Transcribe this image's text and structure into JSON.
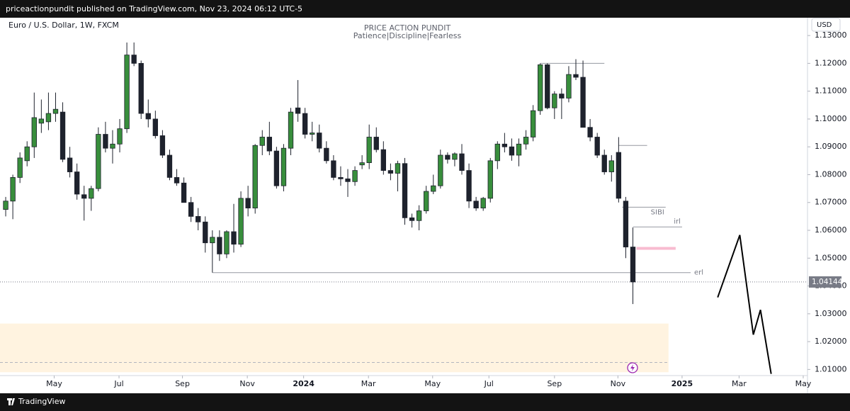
{
  "header": {
    "published": "priceactionpundit published on TradingView.com, Nov 23, 2024 06:12 UTC-5"
  },
  "footer": {
    "brand": "TradingView"
  },
  "chart_data": {
    "type": "candlestick",
    "symbol": "Euro / U.S. Dollar, 1W, FXCM",
    "title": "PRICE ACTION PUNDIT",
    "subtitle": "Patience|Discipline|Fearless",
    "currency": "USD",
    "up_color": "#388e3c",
    "down_color": "#1e222d",
    "open": [
      1.0675,
      1.0705,
      1.079,
      1.085,
      1.09,
      1.0985,
      1.099,
      1.102,
      1.1025,
      1.086,
      1.081,
      1.0728,
      1.0715,
      1.075,
      1.0945,
      1.0895,
      1.091,
      1.0965,
      1.123,
      1.12,
      1.102,
      1.1,
      1.094,
      1.087,
      1.079,
      1.077,
      1.07,
      1.065,
      1.063,
      1.0555,
      1.0575,
      1.0515,
      1.0595,
      1.055,
      1.0715,
      1.068,
      1.0905,
      1.0935,
      1.0885,
      1.076,
      1.0895,
      1.104,
      1.102,
      1.0945,
      1.095,
      1.0895,
      1.085,
      1.079,
      1.0785,
      1.0775,
      1.0835,
      1.0843,
      1.0935,
      1.089,
      1.0815,
      1.0805,
      1.084,
      1.0645,
      1.0635,
      1.067,
      1.074,
      1.076,
      1.087,
      1.0855,
      1.0875,
      1.0815,
      1.0705,
      1.068,
      1.0715,
      1.085,
      1.091,
      1.09,
      1.087,
      1.091,
      1.0935,
      1.103,
      1.1195,
      1.104,
      1.109,
      1.1075,
      1.116,
      1.115,
      1.097,
      1.0935,
      1.087,
      1.081,
      1.088,
      1.0705,
      1.054
    ],
    "high": [
      1.072,
      1.08,
      1.088,
      1.092,
      1.1095,
      1.107,
      1.1095,
      1.1095,
      1.106,
      1.09,
      1.084,
      1.076,
      1.076,
      1.097,
      1.099,
      1.096,
      1.1,
      1.1275,
      1.1275,
      1.121,
      1.107,
      1.103,
      1.096,
      1.089,
      1.082,
      1.079,
      1.072,
      1.068,
      1.065,
      1.06,
      1.06,
      1.06,
      1.0695,
      1.074,
      1.076,
      1.091,
      1.096,
      1.099,
      1.09,
      1.091,
      1.104,
      1.114,
      1.104,
      1.099,
      1.098,
      1.092,
      1.087,
      1.083,
      1.082,
      1.083,
      1.087,
      1.098,
      1.097,
      1.092,
      1.084,
      1.085,
      1.086,
      1.066,
      1.069,
      1.076,
      1.08,
      1.089,
      1.088,
      1.088,
      1.091,
      1.084,
      1.072,
      1.072,
      1.086,
      1.092,
      1.095,
      1.093,
      1.093,
      1.096,
      1.105,
      1.12,
      1.12,
      1.11,
      1.111,
      1.119,
      1.1215,
      1.121,
      1.1,
      1.095,
      1.089,
      1.087,
      1.0935,
      1.072,
      1.061
    ],
    "low": [
      1.065,
      1.064,
      1.077,
      1.083,
      1.086,
      1.095,
      1.096,
      1.099,
      1.0845,
      1.079,
      1.071,
      1.0635,
      1.067,
      1.074,
      1.088,
      1.084,
      1.088,
      1.095,
      1.119,
      1.1,
      1.097,
      1.093,
      1.086,
      1.078,
      1.076,
      1.07,
      1.063,
      1.06,
      1.052,
      1.0448,
      1.049,
      1.05,
      1.052,
      1.054,
      1.065,
      1.066,
      1.087,
      1.087,
      1.075,
      1.074,
      1.087,
      1.099,
      1.093,
      1.092,
      1.088,
      1.084,
      1.078,
      1.076,
      1.072,
      1.076,
      1.082,
      1.082,
      1.088,
      1.08,
      1.078,
      1.074,
      1.062,
      1.061,
      1.06,
      1.066,
      1.073,
      1.075,
      1.084,
      1.083,
      1.08,
      1.068,
      1.067,
      1.067,
      1.07,
      1.082,
      1.088,
      1.085,
      1.083,
      1.089,
      1.092,
      1.1015,
      1.1035,
      1.1,
      1.1,
      1.106,
      1.114,
      1.097,
      1.092,
      1.086,
      1.08,
      1.0775,
      1.07,
      1.05,
      1.0335
    ],
    "close": [
      1.0705,
      1.079,
      1.086,
      1.09,
      1.1005,
      1.1,
      1.102,
      1.1035,
      1.0855,
      1.081,
      1.073,
      1.0715,
      1.075,
      1.0945,
      1.0895,
      1.091,
      1.0965,
      1.123,
      1.12,
      1.102,
      1.1,
      1.094,
      1.087,
      1.079,
      1.077,
      1.07,
      1.065,
      1.063,
      1.0555,
      1.0575,
      1.0515,
      1.0595,
      1.055,
      1.0715,
      1.068,
      1.0905,
      1.0935,
      1.0885,
      1.076,
      1.0895,
      1.1025,
      1.102,
      1.0945,
      1.095,
      1.0895,
      1.085,
      1.079,
      1.0785,
      1.0775,
      1.0815,
      1.0843,
      1.0935,
      1.089,
      1.0815,
      1.0805,
      1.084,
      1.0645,
      1.0635,
      1.067,
      1.074,
      1.076,
      1.087,
      1.0855,
      1.0875,
      1.0815,
      1.0705,
      1.068,
      1.0715,
      1.085,
      1.091,
      1.09,
      1.087,
      1.091,
      1.0935,
      1.103,
      1.1195,
      1.104,
      1.109,
      1.1075,
      1.116,
      1.115,
      1.097,
      1.0935,
      1.087,
      1.081,
      1.085,
      1.0715,
      1.054,
      1.04144
    ],
    "last_price": 1.04144,
    "xlim": [
      -0.8,
      112.5
    ],
    "ylim": [
      1.0078,
      1.1364
    ],
    "xticks": [
      {
        "value": 6.8,
        "label": "May"
      },
      {
        "value": 15.9,
        "label": "Jul"
      },
      {
        "value": 24.8,
        "label": "Sep"
      },
      {
        "value": 33.9,
        "label": "Nov"
      },
      {
        "value": 41.8,
        "label": "2024"
      },
      {
        "value": 50.9,
        "label": "Mar"
      },
      {
        "value": 59.9,
        "label": "May"
      },
      {
        "value": 67.8,
        "label": "Jul"
      },
      {
        "value": 77.0,
        "label": "Sep"
      },
      {
        "value": 85.9,
        "label": "Nov"
      },
      {
        "value": 94.9,
        "label": "2025"
      },
      {
        "value": 102.9,
        "label": "Mar"
      },
      {
        "value": 111.9,
        "label": "May"
      }
    ],
    "yticks": [
      {
        "value": 1.13,
        "label": "1.13000"
      },
      {
        "value": 1.12,
        "label": "1.12000"
      },
      {
        "value": 1.11,
        "label": "1.11000"
      },
      {
        "value": 1.1,
        "label": "1.10000"
      },
      {
        "value": 1.09,
        "label": "1.09000"
      },
      {
        "value": 1.08,
        "label": "1.08000"
      },
      {
        "value": 1.07,
        "label": "1.07000"
      },
      {
        "value": 1.06,
        "label": "1.06000"
      },
      {
        "value": 1.05,
        "label": "1.05000"
      },
      {
        "value": 1.04,
        "label": "1.04000"
      },
      {
        "value": 1.03,
        "label": "1.03000"
      },
      {
        "value": 1.02,
        "label": "1.02000"
      },
      {
        "value": 1.01,
        "label": "1.01000"
      }
    ],
    "levels": [
      {
        "price": 1.12,
        "start": 75,
        "end": 84.0
      },
      {
        "price": 1.0905,
        "start": 86,
        "end": 90.0
      },
      {
        "price": 1.0683,
        "start": 86.5,
        "end": 92.6,
        "label": "SIBI"
      },
      {
        "price": 1.0612,
        "start": 88,
        "end": 94.9,
        "label": "irl"
      },
      {
        "price": 1.0448,
        "start": 29,
        "end": 96.1,
        "label": "erl"
      }
    ],
    "zone": {
      "price": 1.0535,
      "start": 88.5,
      "end": 94.0,
      "color": "#f8bbd0"
    },
    "box": {
      "top": 1.0265,
      "bottom": 1.009,
      "start": -0.8,
      "end": 93.0,
      "mid": 1.0125,
      "color": "#fff3e0"
    },
    "projection": {
      "x": [
        99.9,
        103.0,
        104.9,
        105.9,
        107.4
      ],
      "y": [
        1.0359,
        1.0583,
        1.0225,
        1.0314,
        1.0084
      ]
    }
  }
}
